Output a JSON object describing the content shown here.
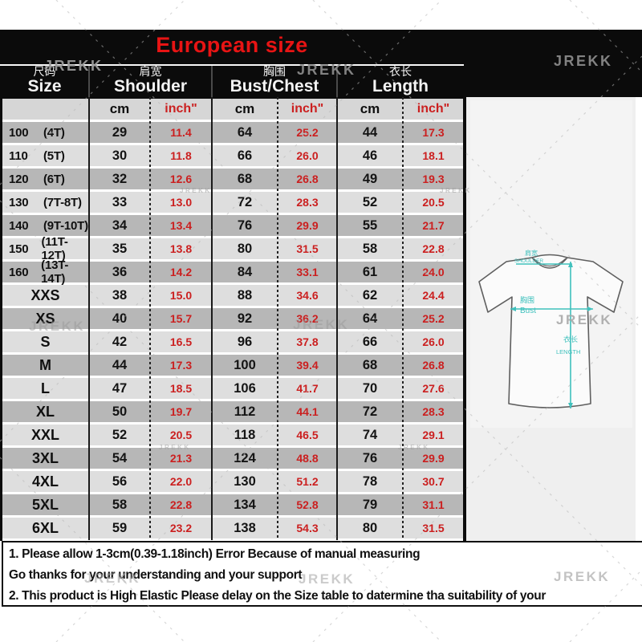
{
  "watermark": "JREKK",
  "header": {
    "title": "European size",
    "groups": [
      {
        "zh": "尺码",
        "en": "Size"
      },
      {
        "zh": "肩宽",
        "en": "Shoulder"
      },
      {
        "zh": "胸围",
        "en": "Bust/Chest"
      },
      {
        "zh": "衣长",
        "en": "Length"
      }
    ],
    "units": [
      "cm",
      "inch\"",
      "cm",
      "inch\"",
      "cm",
      "inch\""
    ]
  },
  "rows": [
    {
      "size": "100",
      "age": "(4T)",
      "shoulder_cm": "29",
      "shoulder_in": "11.4",
      "bust_cm": "64",
      "bust_in": "25.2",
      "length_cm": "44",
      "length_in": "17.3"
    },
    {
      "size": "110",
      "age": "(5T)",
      "shoulder_cm": "30",
      "shoulder_in": "11.8",
      "bust_cm": "66",
      "bust_in": "26.0",
      "length_cm": "46",
      "length_in": "18.1"
    },
    {
      "size": "120",
      "age": "(6T)",
      "shoulder_cm": "32",
      "shoulder_in": "12.6",
      "bust_cm": "68",
      "bust_in": "26.8",
      "length_cm": "49",
      "length_in": "19.3"
    },
    {
      "size": "130",
      "age": "(7T-8T)",
      "shoulder_cm": "33",
      "shoulder_in": "13.0",
      "bust_cm": "72",
      "bust_in": "28.3",
      "length_cm": "52",
      "length_in": "20.5"
    },
    {
      "size": "140",
      "age": "(9T-10T)",
      "shoulder_cm": "34",
      "shoulder_in": "13.4",
      "bust_cm": "76",
      "bust_in": "29.9",
      "length_cm": "55",
      "length_in": "21.7"
    },
    {
      "size": "150",
      "age": "(11T-12T)",
      "shoulder_cm": "35",
      "shoulder_in": "13.8",
      "bust_cm": "80",
      "bust_in": "31.5",
      "length_cm": "58",
      "length_in": "22.8"
    },
    {
      "size": "160",
      "age": "(13T-14T)",
      "shoulder_cm": "36",
      "shoulder_in": "14.2",
      "bust_cm": "84",
      "bust_in": "33.1",
      "length_cm": "61",
      "length_in": "24.0"
    },
    {
      "size": "XXS",
      "age": "",
      "shoulder_cm": "38",
      "shoulder_in": "15.0",
      "bust_cm": "88",
      "bust_in": "34.6",
      "length_cm": "62",
      "length_in": "24.4"
    },
    {
      "size": "XS",
      "age": "",
      "shoulder_cm": "40",
      "shoulder_in": "15.7",
      "bust_cm": "92",
      "bust_in": "36.2",
      "length_cm": "64",
      "length_in": "25.2"
    },
    {
      "size": "S",
      "age": "",
      "shoulder_cm": "42",
      "shoulder_in": "16.5",
      "bust_cm": "96",
      "bust_in": "37.8",
      "length_cm": "66",
      "length_in": "26.0"
    },
    {
      "size": "M",
      "age": "",
      "shoulder_cm": "44",
      "shoulder_in": "17.3",
      "bust_cm": "100",
      "bust_in": "39.4",
      "length_cm": "68",
      "length_in": "26.8"
    },
    {
      "size": "L",
      "age": "",
      "shoulder_cm": "47",
      "shoulder_in": "18.5",
      "bust_cm": "106",
      "bust_in": "41.7",
      "length_cm": "70",
      "length_in": "27.6"
    },
    {
      "size": "XL",
      "age": "",
      "shoulder_cm": "50",
      "shoulder_in": "19.7",
      "bust_cm": "112",
      "bust_in": "44.1",
      "length_cm": "72",
      "length_in": "28.3"
    },
    {
      "size": "XXL",
      "age": "",
      "shoulder_cm": "52",
      "shoulder_in": "20.5",
      "bust_cm": "118",
      "bust_in": "46.5",
      "length_cm": "74",
      "length_in": "29.1"
    },
    {
      "size": "3XL",
      "age": "",
      "shoulder_cm": "54",
      "shoulder_in": "21.3",
      "bust_cm": "124",
      "bust_in": "48.8",
      "length_cm": "76",
      "length_in": "29.9"
    },
    {
      "size": "4XL",
      "age": "",
      "shoulder_cm": "56",
      "shoulder_in": "22.0",
      "bust_cm": "130",
      "bust_in": "51.2",
      "length_cm": "78",
      "length_in": "30.7"
    },
    {
      "size": "5XL",
      "age": "",
      "shoulder_cm": "58",
      "shoulder_in": "22.8",
      "bust_cm": "134",
      "bust_in": "52.8",
      "length_cm": "79",
      "length_in": "31.1"
    },
    {
      "size": "6XL",
      "age": "",
      "shoulder_cm": "59",
      "shoulder_in": "23.2",
      "bust_cm": "138",
      "bust_in": "54.3",
      "length_cm": "80",
      "length_in": "31.5"
    }
  ],
  "diagram": {
    "shoulder_zh": "肩宽",
    "shoulder_en": "SHOULDER",
    "bust_zh": "胸围",
    "bust_en": "Bust",
    "length_zh": "衣长",
    "length_en": "LENGTH"
  },
  "notes": [
    "1. Please allow 1-3cm(0.39-1.18inch) Error Because of manual measuring",
    "Go thanks for your understanding and your support",
    "2. This product is High Elastic  Please delay on the Size table to datermine tha suitability of your"
  ],
  "colors": {
    "title_red": "#e81414",
    "value_red": "#cb1f1f",
    "band_black": "#0b0b0b",
    "row_dark": "#b7b7b7",
    "row_light": "#dedede",
    "units_gray": "#d6d6d6",
    "teal": "#3fc1bd"
  }
}
